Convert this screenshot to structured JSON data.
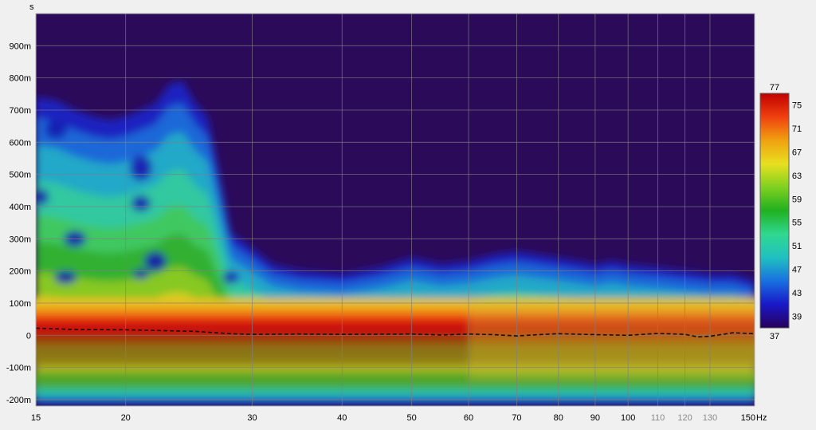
{
  "chart_data": {
    "type": "heatmap",
    "title": "",
    "xlabel": "",
    "ylabel": "",
    "yunit_label": "s",
    "xunit_label": "Hz",
    "x_scale": "log",
    "xlim": [
      15,
      150
    ],
    "ylim": [
      -0.22,
      1.0
    ],
    "x_ticks": [
      {
        "value": 15,
        "label": "15",
        "color": "#000000"
      },
      {
        "value": 20,
        "label": "20",
        "color": "#000000"
      },
      {
        "value": 30,
        "label": "30",
        "color": "#000000"
      },
      {
        "value": 40,
        "label": "40",
        "color": "#000000"
      },
      {
        "value": 50,
        "label": "50",
        "color": "#000000"
      },
      {
        "value": 60,
        "label": "60",
        "color": "#000000"
      },
      {
        "value": 70,
        "label": "70",
        "color": "#000000"
      },
      {
        "value": 80,
        "label": "80",
        "color": "#000000"
      },
      {
        "value": 90,
        "label": "90",
        "color": "#000000"
      },
      {
        "value": 100,
        "label": "100",
        "color": "#000000"
      },
      {
        "value": 110,
        "label": "110",
        "color": "#8a8a8a"
      },
      {
        "value": 120,
        "label": "120",
        "color": "#8a8a8a"
      },
      {
        "value": 130,
        "label": "130",
        "color": "#8a8a8a"
      },
      {
        "value": 150,
        "label": "150",
        "color": "#000000"
      }
    ],
    "y_ticks": [
      {
        "value": 0.9,
        "label": "900m"
      },
      {
        "value": 0.8,
        "label": "800m"
      },
      {
        "value": 0.7,
        "label": "700m"
      },
      {
        "value": 0.6,
        "label": "600m"
      },
      {
        "value": 0.5,
        "label": "500m"
      },
      {
        "value": 0.4,
        "label": "400m"
      },
      {
        "value": 0.3,
        "label": "300m"
      },
      {
        "value": 0.2,
        "label": "200m"
      },
      {
        "value": 0.1,
        "label": "100m"
      },
      {
        "value": 0.0,
        "label": "0"
      },
      {
        "value": -0.1,
        "label": "-100m"
      },
      {
        "value": -0.2,
        "label": "-200m"
      }
    ],
    "colorbar": {
      "min": 37,
      "max": 77,
      "min_label": "37",
      "max_label": "77",
      "tick_values": [
        75,
        71,
        67,
        63,
        59,
        55,
        51,
        47,
        43,
        39
      ],
      "tick_labels": [
        "75",
        "71",
        "67",
        "63",
        "59",
        "55",
        "51",
        "47",
        "43",
        "39"
      ],
      "colors": [
        "#28005a",
        "#1a18c8",
        "#1870e0",
        "#20c0c0",
        "#30d890",
        "#20b020",
        "#80d020",
        "#e8e020",
        "#f0a010",
        "#f04010",
        "#c00000"
      ]
    },
    "background_color": "#2c0a5a",
    "peak_line": {
      "style": "dashed",
      "x": [
        15,
        17,
        20,
        22,
        25,
        28,
        30,
        35,
        40,
        50,
        55,
        60,
        65,
        70,
        75,
        80,
        90,
        100,
        110,
        120,
        125,
        130,
        140,
        150
      ],
      "y": [
        0.022,
        0.018,
        0.017,
        0.015,
        0.012,
        0.005,
        0.003,
        0.004,
        0.003,
        0.004,
        0.001,
        0.004,
        0.002,
        -0.002,
        0.002,
        0.005,
        0.002,
        0.0,
        0.006,
        0.003,
        -0.005,
        -0.003,
        0.008,
        0.005
      ]
    },
    "decay_envelope": {
      "x": [
        15,
        16,
        17,
        18,
        19,
        20,
        21,
        22,
        23,
        24,
        25,
        26,
        27,
        28,
        30,
        32,
        35,
        40,
        45,
        50,
        55,
        60,
        65,
        70,
        75,
        80,
        85,
        90,
        95,
        100,
        110,
        120,
        130,
        140,
        150
      ],
      "t_top": [
        0.74,
        0.73,
        0.7,
        0.68,
        0.67,
        0.68,
        0.7,
        0.72,
        0.78,
        0.79,
        0.72,
        0.68,
        0.5,
        0.32,
        0.27,
        0.22,
        0.2,
        0.19,
        0.21,
        0.24,
        0.22,
        0.23,
        0.25,
        0.26,
        0.25,
        0.24,
        0.23,
        0.22,
        0.23,
        0.22,
        0.21,
        0.2,
        0.19,
        0.19,
        0.17
      ]
    }
  }
}
